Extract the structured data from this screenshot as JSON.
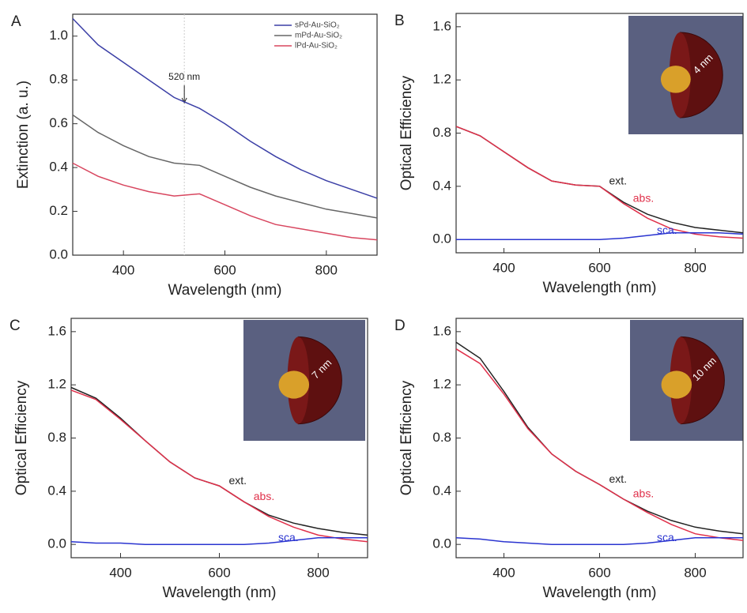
{
  "chart_data": [
    {
      "type": "line",
      "label": "A",
      "xlabel": "Wavelength (nm)",
      "ylabel": "Extinction (a. u.)",
      "x": [
        300,
        350,
        400,
        450,
        500,
        550,
        600,
        650,
        700,
        750,
        800,
        850,
        900
      ],
      "xlim": [
        300,
        900
      ],
      "xticks": [
        400,
        600,
        800
      ],
      "ylim": [
        0,
        1.1
      ],
      "yticks": [
        {
          "value": 0,
          "label": "0.0"
        },
        0.2,
        0.4,
        0.6,
        0.8,
        {
          "value": 1,
          "label": "1.0"
        }
      ],
      "legend": "upper right",
      "annotations": [
        {
          "text": "520 nm",
          "x": 520
        }
      ],
      "series": [
        {
          "name": "sPd-Au-SiO₂",
          "color": "#3b3fa6",
          "values": [
            1.08,
            0.96,
            0.88,
            0.8,
            0.72,
            0.67,
            0.6,
            0.52,
            0.45,
            0.39,
            0.34,
            0.3,
            0.26
          ]
        },
        {
          "name": "mPd-Au-SiO₂",
          "color": "#666666",
          "values": [
            0.64,
            0.56,
            0.5,
            0.45,
            0.42,
            0.41,
            0.36,
            0.31,
            0.27,
            0.24,
            0.21,
            0.19,
            0.17
          ]
        },
        {
          "name": "lPd-Au-SiO₂",
          "color": "#d8465f",
          "values": [
            0.42,
            0.36,
            0.32,
            0.29,
            0.27,
            0.28,
            0.23,
            0.18,
            0.14,
            0.12,
            0.1,
            0.08,
            0.07
          ]
        }
      ]
    },
    {
      "type": "line",
      "label": "B",
      "xlabel": "Wavelength (nm)",
      "ylabel": "Optical Efficiency",
      "inset_label": "4 nm",
      "x": [
        300,
        350,
        400,
        450,
        500,
        550,
        600,
        650,
        700,
        750,
        800,
        850,
        900
      ],
      "xlim": [
        300,
        900
      ],
      "xticks": [
        400,
        600,
        800
      ],
      "ylim": [
        -0.1,
        1.7
      ],
      "yticks": [
        {
          "value": 0,
          "label": "0.0"
        },
        0.4,
        0.8,
        1.2,
        1.6
      ],
      "series": [
        {
          "name": "ext.",
          "color": "#222222",
          "values": [
            0.85,
            0.78,
            0.66,
            0.54,
            0.44,
            0.41,
            0.4,
            0.28,
            0.19,
            0.13,
            0.09,
            0.07,
            0.05
          ]
        },
        {
          "name": "abs.",
          "color": "#e0304a",
          "values": [
            0.85,
            0.78,
            0.66,
            0.54,
            0.44,
            0.41,
            0.4,
            0.27,
            0.16,
            0.08,
            0.04,
            0.02,
            0.01
          ]
        },
        {
          "name": "sca.",
          "color": "#2a34d0",
          "values": [
            0,
            0,
            0,
            0,
            0,
            0,
            0,
            0.01,
            0.03,
            0.05,
            0.05,
            0.05,
            0.04
          ]
        }
      ]
    },
    {
      "type": "line",
      "label": "C",
      "xlabel": "Wavelength (nm)",
      "ylabel": "Optical Efficiency",
      "inset_label": "7 nm",
      "x": [
        300,
        350,
        400,
        450,
        500,
        550,
        600,
        650,
        700,
        750,
        800,
        850,
        900
      ],
      "xlim": [
        300,
        900
      ],
      "xticks": [
        400,
        600,
        800
      ],
      "ylim": [
        -0.1,
        1.7
      ],
      "yticks": [
        {
          "value": 0,
          "label": "0.0"
        },
        0.4,
        0.8,
        1.2,
        1.6
      ],
      "series": [
        {
          "name": "ext.",
          "color": "#222222",
          "values": [
            1.18,
            1.1,
            0.95,
            0.78,
            0.62,
            0.5,
            0.44,
            0.32,
            0.22,
            0.16,
            0.12,
            0.09,
            0.07
          ]
        },
        {
          "name": "abs.",
          "color": "#e0304a",
          "values": [
            1.16,
            1.09,
            0.94,
            0.78,
            0.62,
            0.5,
            0.44,
            0.32,
            0.21,
            0.13,
            0.07,
            0.04,
            0.02
          ]
        },
        {
          "name": "sca.",
          "color": "#2a34d0",
          "values": [
            0.02,
            0.01,
            0.01,
            0,
            0,
            0,
            0,
            0,
            0.01,
            0.03,
            0.05,
            0.05,
            0.05
          ]
        }
      ]
    },
    {
      "type": "line",
      "label": "D",
      "xlabel": "Wavelength (nm)",
      "ylabel": "Optical Efficiency",
      "inset_label": "10 nm",
      "x": [
        300,
        350,
        400,
        450,
        500,
        550,
        600,
        650,
        700,
        750,
        800,
        850,
        900
      ],
      "xlim": [
        300,
        900
      ],
      "xticks": [
        400,
        600,
        800
      ],
      "ylim": [
        -0.1,
        1.7
      ],
      "yticks": [
        {
          "value": 0,
          "label": "0.0"
        },
        0.4,
        0.8,
        1.2,
        1.6
      ],
      "series": [
        {
          "name": "ext.",
          "color": "#222222",
          "values": [
            1.52,
            1.4,
            1.15,
            0.88,
            0.68,
            0.55,
            0.45,
            0.34,
            0.25,
            0.18,
            0.13,
            0.1,
            0.08
          ]
        },
        {
          "name": "abs.",
          "color": "#e0304a",
          "values": [
            1.47,
            1.36,
            1.13,
            0.87,
            0.68,
            0.55,
            0.45,
            0.34,
            0.24,
            0.15,
            0.08,
            0.05,
            0.03
          ]
        },
        {
          "name": "sca.",
          "color": "#2a34d0",
          "values": [
            0.05,
            0.04,
            0.02,
            0.01,
            0,
            0,
            0,
            0,
            0.01,
            0.03,
            0.05,
            0.05,
            0.05
          ]
        }
      ]
    }
  ]
}
